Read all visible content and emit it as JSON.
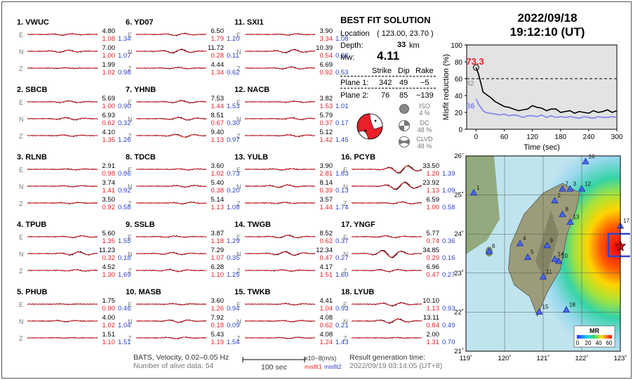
{
  "header": {
    "date": "2022/09/18",
    "time": "19:12:10  (UT)"
  },
  "best_fit": {
    "title": "BEST FIT SOLUTION",
    "location_label": "Location",
    "location_value": "( 123.00, 23.70 )",
    "depth_label": "Depth:",
    "depth_value": "33",
    "depth_unit": "km",
    "mw_label": "Mw:",
    "mw_value": "4.11",
    "col_strike": "Strike",
    "col_dip": "Dip",
    "col_rake": "Rake",
    "plane1": {
      "label": "Plane 1:",
      "strike": "342",
      "dip": "49",
      "rake": "−5"
    },
    "plane2": {
      "label": "Plane 2:",
      "strike": "76",
      "dip": "85",
      "rake": "−139"
    },
    "iso": {
      "label": "ISO",
      "pct": "4 %"
    },
    "dc": {
      "label": "DC",
      "pct": "48 %"
    },
    "clvd": {
      "label": "CLVD",
      "pct": "48 %"
    }
  },
  "components": [
    "E",
    "N",
    "Z"
  ],
  "stations": [
    {
      "name": "1.  VWUC",
      "comps": [
        {
          "amp": "4.80",
          "m1": "1.08",
          "m2": "1.34"
        },
        {
          "amp": "7.00",
          "m1": "1.00",
          "m2": "1.07"
        },
        {
          "amp": "1.99",
          "m1": "1.02",
          "m2": "0.98"
        }
      ]
    },
    {
      "name": "2.  SBCB",
      "comps": [
        {
          "amp": "5.69",
          "m1": "1.00",
          "m2": "0.90"
        },
        {
          "amp": "6.93",
          "m1": "0.62",
          "m2": "0.32"
        },
        {
          "amp": "4.10",
          "m1": "1.35",
          "m2": "1.26"
        }
      ]
    },
    {
      "name": "3.  RLNB",
      "comps": [
        {
          "amp": "2.91",
          "m1": "0.98",
          "m2": "0.86"
        },
        {
          "amp": "3.74",
          "m1": "1.41",
          "m2": "0.92"
        },
        {
          "amp": "3.50",
          "m1": "0.92",
          "m2": "0.58"
        }
      ]
    },
    {
      "name": "4.  TPUB",
      "comps": [
        {
          "amp": "5.60",
          "m1": "1.35",
          "m2": "1.55"
        },
        {
          "amp": "11.23",
          "m1": "0.32",
          "m2": "0.18"
        },
        {
          "amp": "4.52",
          "m1": "1.30",
          "m2": "1.69"
        }
      ]
    },
    {
      "name": "5.  PHUB",
      "comps": [
        {
          "amp": "1.75",
          "m1": "0.90",
          "m2": "0.46"
        },
        {
          "amp": "4.00",
          "m1": "1.02",
          "m2": "1.04"
        },
        {
          "amp": "1.51",
          "m1": "1.10",
          "m2": "1.51"
        }
      ]
    },
    {
      "name": "6.  YD07",
      "comps": [
        {
          "amp": "6.50",
          "m1": "1.79",
          "m2": "1.20"
        },
        {
          "amp": "11.72",
          "m1": "0.28",
          "m2": "0.11"
        },
        {
          "amp": "4.44",
          "m1": "1.34",
          "m2": "0.62"
        }
      ]
    },
    {
      "name": "7.  YHNB",
      "comps": [
        {
          "amp": "7.53",
          "m1": "1.44",
          "m2": "1.53"
        },
        {
          "amp": "8.51",
          "m1": "0.67",
          "m2": "0.30"
        },
        {
          "amp": "9.40",
          "m1": "1.13",
          "m2": "0.97"
        }
      ]
    },
    {
      "name": "8.  TDCB",
      "comps": [
        {
          "amp": "3.60",
          "m1": "1.02",
          "m2": "0.73"
        },
        {
          "amp": "5.40",
          "m1": "0.38",
          "m2": "0.20"
        },
        {
          "amp": "5.14",
          "m1": "1.13",
          "m2": "1.08"
        }
      ]
    },
    {
      "name": "9.  SSLB",
      "comps": [
        {
          "amp": "3.87",
          "m1": "1.18",
          "m2": "1.29"
        },
        {
          "amp": "7.29",
          "m1": "1.07",
          "m2": "0.35"
        },
        {
          "amp": "6.28",
          "m1": "1.10",
          "m2": "1.25"
        }
      ]
    },
    {
      "name": "10. MASB",
      "comps": [
        {
          "amp": "3.60",
          "m1": "1.26",
          "m2": "0.94"
        },
        {
          "amp": "7.92",
          "m1": "0.18",
          "m2": "0.09"
        },
        {
          "amp": "5.43",
          "m1": "1.19",
          "m2": "1.54"
        }
      ]
    },
    {
      "name": "11. SXI1",
      "comps": [
        {
          "amp": "3.90",
          "m1": "3.34",
          "m2": "1.08"
        },
        {
          "amp": "10.39",
          "m1": "0.54",
          "m2": "0.32"
        },
        {
          "amp": "6.69",
          "m1": "0.92",
          "m2": "0.53"
        }
      ]
    },
    {
      "name": "12. NACB",
      "comps": [
        {
          "amp": "3.82",
          "m1": "1.53",
          "m2": "1.01"
        },
        {
          "amp": "5.79",
          "m1": "0.37",
          "m2": "0.17"
        },
        {
          "amp": "5.12",
          "m1": "1.42",
          "m2": "1.45"
        }
      ]
    },
    {
      "name": "13. YULB",
      "comps": [
        {
          "amp": "3.90",
          "m1": "2.81",
          "m2": "1.83"
        },
        {
          "amp": "8.14",
          "m1": "0.39",
          "m2": "0.13"
        },
        {
          "amp": "3.57",
          "m1": "1.44",
          "m2": "1.74"
        }
      ]
    },
    {
      "name": "14. TWGB",
      "comps": [
        {
          "amp": "8.52",
          "m1": "0.62",
          "m2": "0.37"
        },
        {
          "amp": "12.34",
          "m1": "0.47",
          "m2": "0.27"
        },
        {
          "amp": "4.17",
          "m1": "1.51",
          "m2": "1.60"
        }
      ]
    },
    {
      "name": "15. TWKB",
      "comps": [
        {
          "amp": "4.41",
          "m1": "1.04",
          "m2": "0.93"
        },
        {
          "amp": "4.08",
          "m1": "0.62",
          "m2": "0.21"
        },
        {
          "amp": "4.08",
          "m1": "1.24",
          "m2": "1.43"
        }
      ]
    },
    {
      "name": "16. PCYB",
      "comps": [
        {
          "amp": "33.50",
          "m1": "1.20",
          "m2": "1.39"
        },
        {
          "amp": "23.92",
          "m1": "1.13",
          "m2": "1.09"
        },
        {
          "amp": "6.59",
          "m1": "1.00",
          "m2": "0.58"
        }
      ]
    },
    {
      "name": "17. YNGF",
      "comps": [
        {
          "amp": "5.77",
          "m1": "0.74",
          "m2": "0.36"
        },
        {
          "amp": "34.85",
          "m1": "0.29",
          "m2": "0.16"
        },
        {
          "amp": "6.96",
          "m1": "0.47",
          "m2": "0.27"
        }
      ]
    },
    {
      "name": "18. LYUB",
      "comps": [
        {
          "amp": "10.10",
          "m1": "1.13",
          "m2": "0.93"
        },
        {
          "amp": "13.11",
          "m1": "0.84",
          "m2": "0.49"
        },
        {
          "amp": "2.00",
          "m1": "1.31",
          "m2": "0.70"
        }
      ]
    }
  ],
  "footer": {
    "bats_line": "BATS, Velocity, 0.02–0.05 Hz",
    "alive_line": "Number of alive data: 54",
    "scale_label": "100 sec",
    "unit_label": "x10−8(m/s)",
    "misfit1_label": "misfit1",
    "misfit2_label": "misfit2",
    "result_label": "Result generation time:",
    "result_time": "2022/09/19 03:14:05 (UT+8)"
  },
  "map": {
    "lon_ticks": [
      "119˚",
      "120˚",
      "121˚",
      "122˚",
      "123˚"
    ],
    "lat_ticks": [
      "26˚",
      "25˚",
      "24˚",
      "23˚",
      "22˚",
      "21˚"
    ],
    "station_labels": [
      "1",
      "2",
      "3",
      "4",
      "5",
      "6",
      "7",
      "8",
      "9",
      "10",
      "11",
      "12",
      "13",
      "14",
      "15",
      "16",
      "17",
      "18"
    ],
    "mr_label": "MR",
    "mr_ticks": [
      "0",
      "20",
      "40",
      "60"
    ]
  },
  "colors": {
    "misfit1": "#e8202a",
    "misfit2": "#2a3fc8",
    "obs": "#000000",
    "syn": "#e8202a",
    "nodal_box": "#3344cc"
  },
  "chart_data": {
    "type": "line",
    "xlabel": "Time (sec)",
    "ylabel": "Misfit reduction (%)",
    "xlim": [
      -20,
      300
    ],
    "ylim": [
      0,
      100
    ],
    "x_ticks": [
      "0",
      "60",
      "120",
      "180",
      "240",
      "300"
    ],
    "y_ticks": [
      "0",
      "20",
      "40",
      "60",
      "80",
      "100"
    ],
    "threshold": 60,
    "annotations": {
      "max_mr": "73.3",
      "mid_value": "42",
      "low_value": "36"
    },
    "x": [
      0,
      5,
      10,
      15,
      20,
      30,
      40,
      50,
      60,
      70,
      80,
      90,
      100,
      110,
      120,
      130,
      140,
      150,
      160,
      170,
      180,
      190,
      200,
      210,
      220,
      230,
      240,
      250,
      260,
      270,
      280,
      290,
      300
    ],
    "series": [
      {
        "color": "#000000",
        "values": [
          73.3,
          66,
          55,
          44,
          42,
          38,
          33,
          30,
          27,
          26,
          24,
          22,
          23,
          24,
          28,
          26,
          25,
          22,
          24,
          24,
          20,
          21,
          22,
          19,
          21,
          20,
          19,
          22,
          20,
          21,
          23,
          20,
          22
        ]
      },
      {
        "color": "#8888ee",
        "values": [
          36,
          30,
          26,
          22,
          20,
          19,
          18,
          17,
          18,
          16,
          17,
          16,
          14,
          16,
          16,
          15,
          17,
          14,
          16,
          14,
          15,
          14,
          15,
          14,
          13,
          15,
          14,
          13,
          15,
          14,
          14,
          15,
          14
        ]
      }
    ]
  }
}
